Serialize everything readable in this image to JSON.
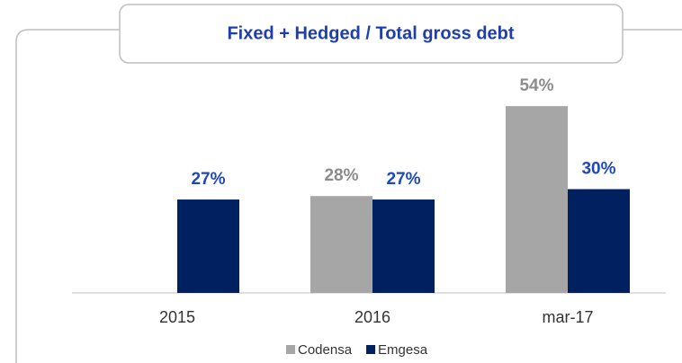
{
  "chart_data": {
    "type": "bar",
    "title": "Fixed + Hedged / Total gross debt",
    "categories": [
      "2015",
      "2016",
      "mar-17"
    ],
    "series": [
      {
        "name": "Codensa",
        "color": "#a6a6a6",
        "values": [
          null,
          28,
          54
        ],
        "value_labels": [
          null,
          "28%",
          "54%"
        ]
      },
      {
        "name": "Emgesa",
        "color": "#002060",
        "values": [
          27,
          27,
          30
        ],
        "value_labels": [
          "27%",
          "27%",
          "30%"
        ]
      }
    ]
  }
}
